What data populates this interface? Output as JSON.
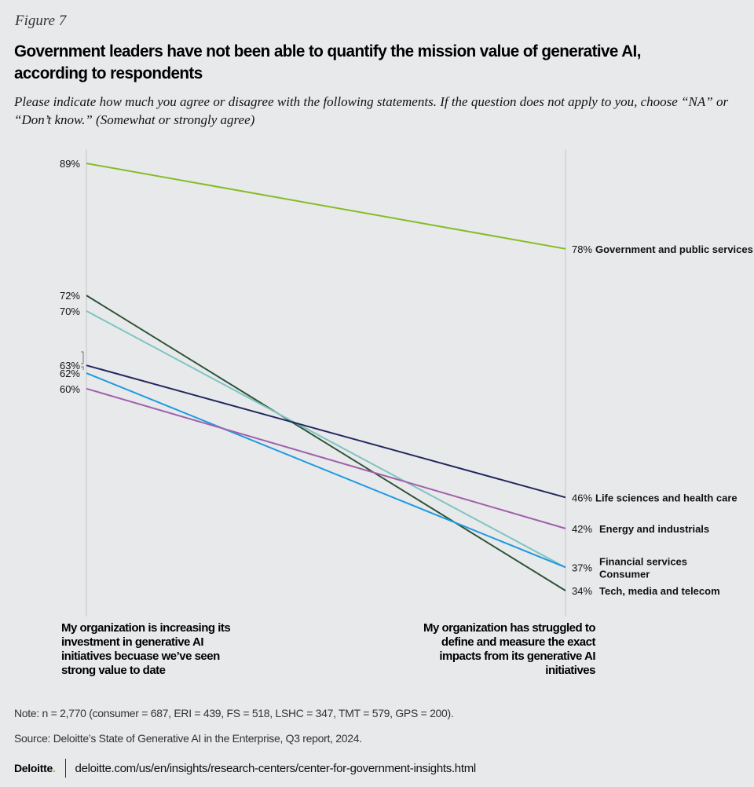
{
  "figure_label": "Figure 7",
  "footer": {
    "note": "Note: n = 2,770 (consumer = 687, ERI = 439, FS = 518, LSHC = 347, TMT = 579, GPS = 200).",
    "source": "Source: Deloitte’s State of Generative AI in the Enterprise, Q3 report, 2024.",
    "logo": "Deloitte",
    "logo_dot": ".",
    "url": "deloitte.com/us/en/insights/research-centers/center-for-government-insights.html"
  },
  "chart_data": {
    "type": "line",
    "subtype": "slope",
    "title": "Government leaders have not been able to quantify the mission value of generative AI, according to respondents",
    "subtitle": "Please indicate how much you agree or disagree with the following statements. If the question does not apply to you, choose “NA” or “Don’t know.” (Somewhat or strongly agree)",
    "categories": [
      "My organization is increasing its investment in generative AI initiatives becuase we’ve seen strong value to date",
      "My organization has struggled to define and measure the exact impacts from its generative AI initiatives"
    ],
    "unit": "%",
    "ylim": [
      34,
      89
    ],
    "grid": false,
    "series": [
      {
        "name": "Government and public services",
        "values": [
          89,
          78
        ],
        "color": "#86bc25"
      },
      {
        "name": "Tech, media and telecom",
        "values": [
          72,
          34
        ],
        "color": "#2c5234"
      },
      {
        "name": "Consumer",
        "values": [
          70,
          37
        ],
        "color": "#7fc4c2"
      },
      {
        "name": "Life sciences and health care",
        "values": [
          63,
          46
        ],
        "color": "#22265e"
      },
      {
        "name": "Financial services",
        "values": [
          62,
          37
        ],
        "color": "#1f9ae0"
      },
      {
        "name": "Energy and industrials",
        "values": [
          60,
          42
        ],
        "color": "#a160ab"
      }
    ],
    "left_labels": [
      "89%",
      "72%",
      "70%",
      "63%",
      "62%",
      "60%"
    ],
    "right_labels": [
      {
        "value": "78%",
        "text": "Government and public services"
      },
      {
        "value": "46%",
        "text": "Life sciences and health care"
      },
      {
        "value": "42%",
        "text": "Energy and industrials"
      },
      {
        "value": "37%",
        "text": "Financial services",
        "text2": "Consumer"
      },
      {
        "value": "34%",
        "text": "Tech, media and telecom"
      }
    ],
    "axis_color": "#d6d7d9"
  }
}
